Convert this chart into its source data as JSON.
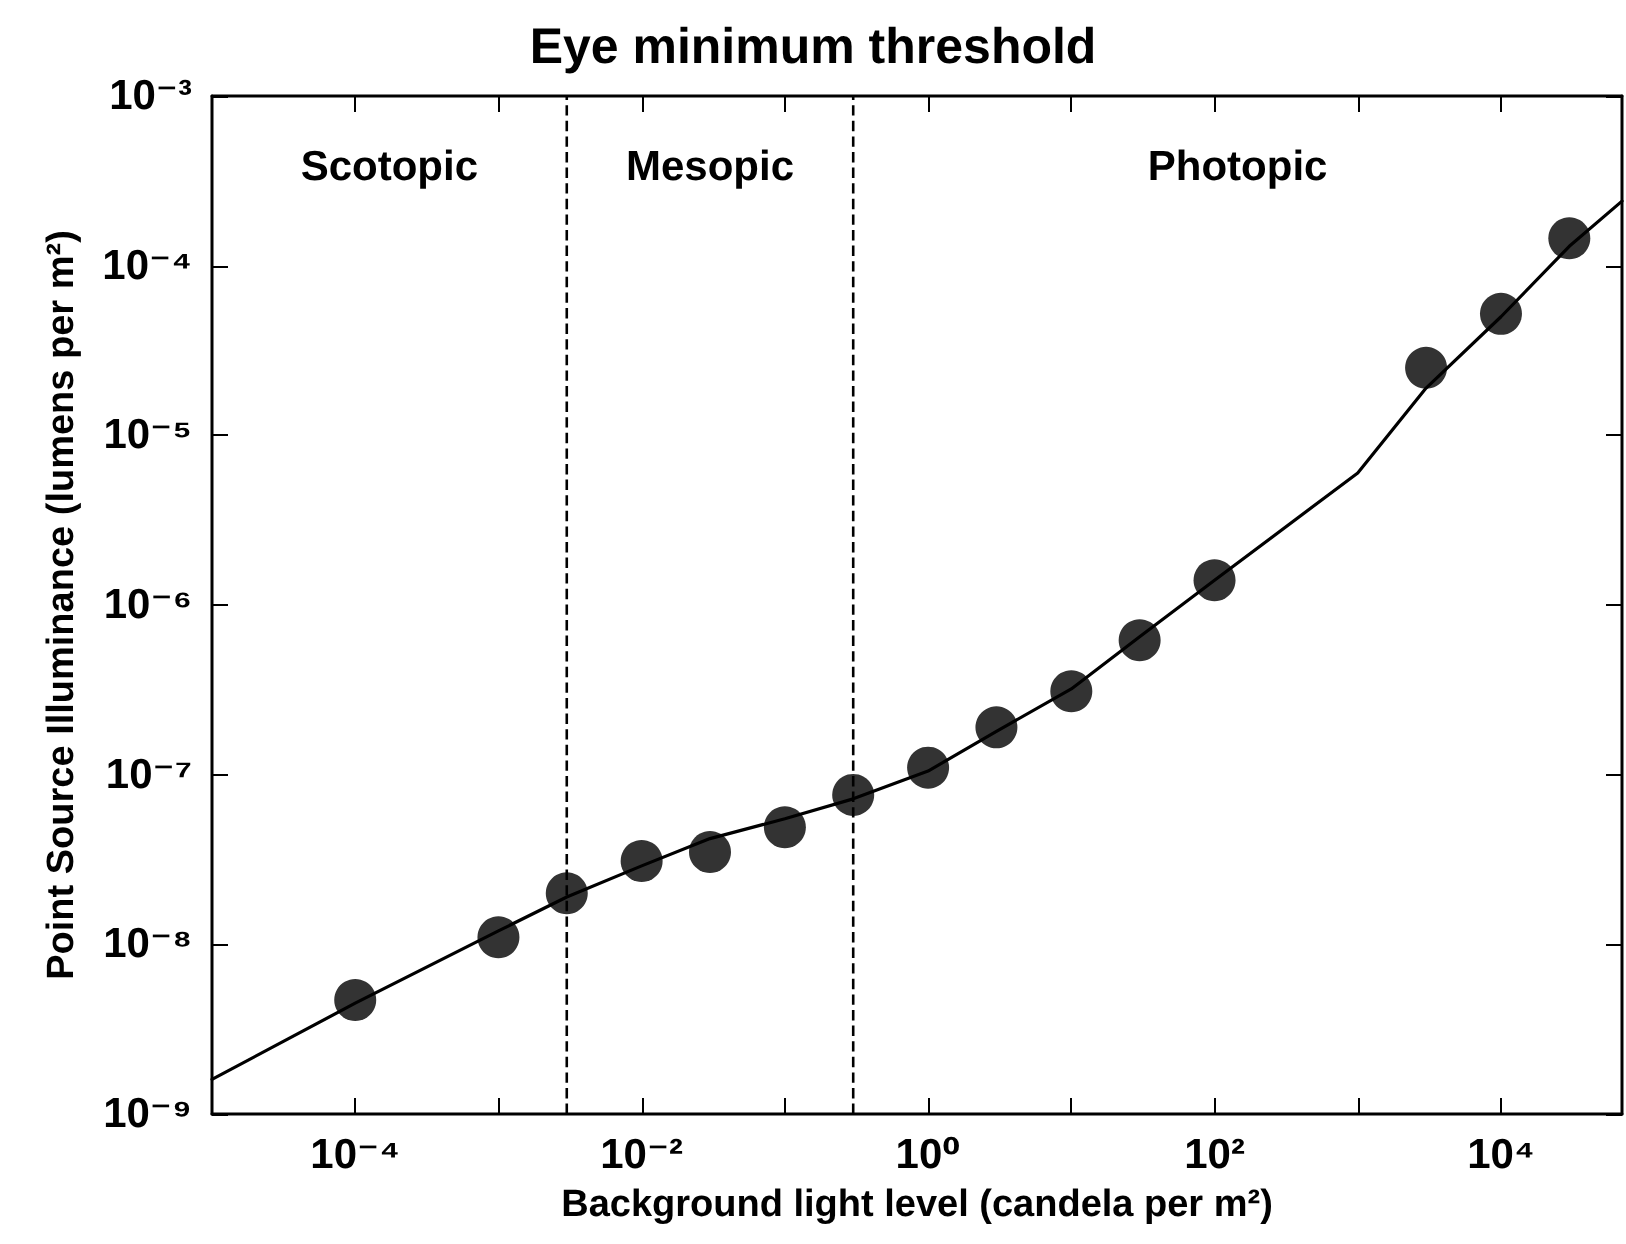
{
  "chart_data": {
    "type": "scatter",
    "title": "Eye minimum threshold",
    "xlabel": "Background light level (candela per m²)",
    "ylabel": "Point Source Illuminance (lumens per m²)",
    "log": "xy",
    "xlim": [
      1e-05,
      70000
    ],
    "ylim": [
      1e-09,
      0.001
    ],
    "xticks": [
      {
        "value": 0.0001,
        "label": "10⁻⁴"
      },
      {
        "value": 0.001,
        "label": null
      },
      {
        "value": 0.01,
        "label": "10⁻²"
      },
      {
        "value": 0.1,
        "label": null
      },
      {
        "value": 1,
        "label": "10⁰"
      },
      {
        "value": 10,
        "label": null
      },
      {
        "value": 100,
        "label": "10²"
      },
      {
        "value": 1000,
        "label": null
      },
      {
        "value": 10000,
        "label": "10⁴"
      }
    ],
    "yticks": [
      {
        "value": 1e-09,
        "label": "10⁻⁹"
      },
      {
        "value": 1e-08,
        "label": "10⁻⁸"
      },
      {
        "value": 1e-07,
        "label": "10⁻⁷"
      },
      {
        "value": 1e-06,
        "label": "10⁻⁶"
      },
      {
        "value": 1e-05,
        "label": "10⁻⁵"
      },
      {
        "value": 0.0001,
        "label": "10⁻⁴"
      },
      {
        "value": 0.001,
        "label": "10⁻³"
      }
    ],
    "ref_lines": [
      {
        "axis": "x",
        "value": 0.003,
        "line_style": "dashed",
        "color": "#000000"
      },
      {
        "axis": "x",
        "value": 0.3,
        "line_style": "dashed",
        "color": "#000000"
      }
    ],
    "annotations": [
      "Scotopic",
      "Mesopic",
      "Photopic"
    ],
    "series": [
      {
        "color": "#000000",
        "marker": "circle",
        "x": [
          0.0001,
          0.001,
          0.003,
          0.01,
          0.03,
          0.1,
          0.3,
          1,
          3,
          10,
          30,
          100,
          3000,
          10000,
          30000
        ],
        "values": [
          4.7e-09,
          1.1e-08,
          2e-08,
          3.1e-08,
          3.5e-08,
          4.9e-08,
          7.6e-08,
          1.1e-07,
          1.9e-07,
          3.1e-07,
          6.2e-07,
          1.4e-06,
          2.5e-05,
          5.2e-05,
          0.000145
        ]
      },
      {
        "type": "line",
        "color": "#000000",
        "marker": "none",
        "line_style": "solid",
        "x": [
          1e-05,
          0.0001,
          0.001,
          0.003,
          0.01,
          0.03,
          0.1,
          0.3,
          1,
          3,
          10,
          30,
          100,
          1000,
          3000,
          10000,
          30000,
          70000
        ],
        "values": [
          1.6e-09,
          4.5e-09,
          1.2e-08,
          1.9e-08,
          2.9e-08,
          4.2e-08,
          5.5e-08,
          7.2e-08,
          1.05e-07,
          1.8e-07,
          3.2e-07,
          6.5e-07,
          1.4e-06,
          6e-06,
          1.9e-05,
          5e-05,
          0.00013,
          0.00024
        ]
      }
    ]
  }
}
